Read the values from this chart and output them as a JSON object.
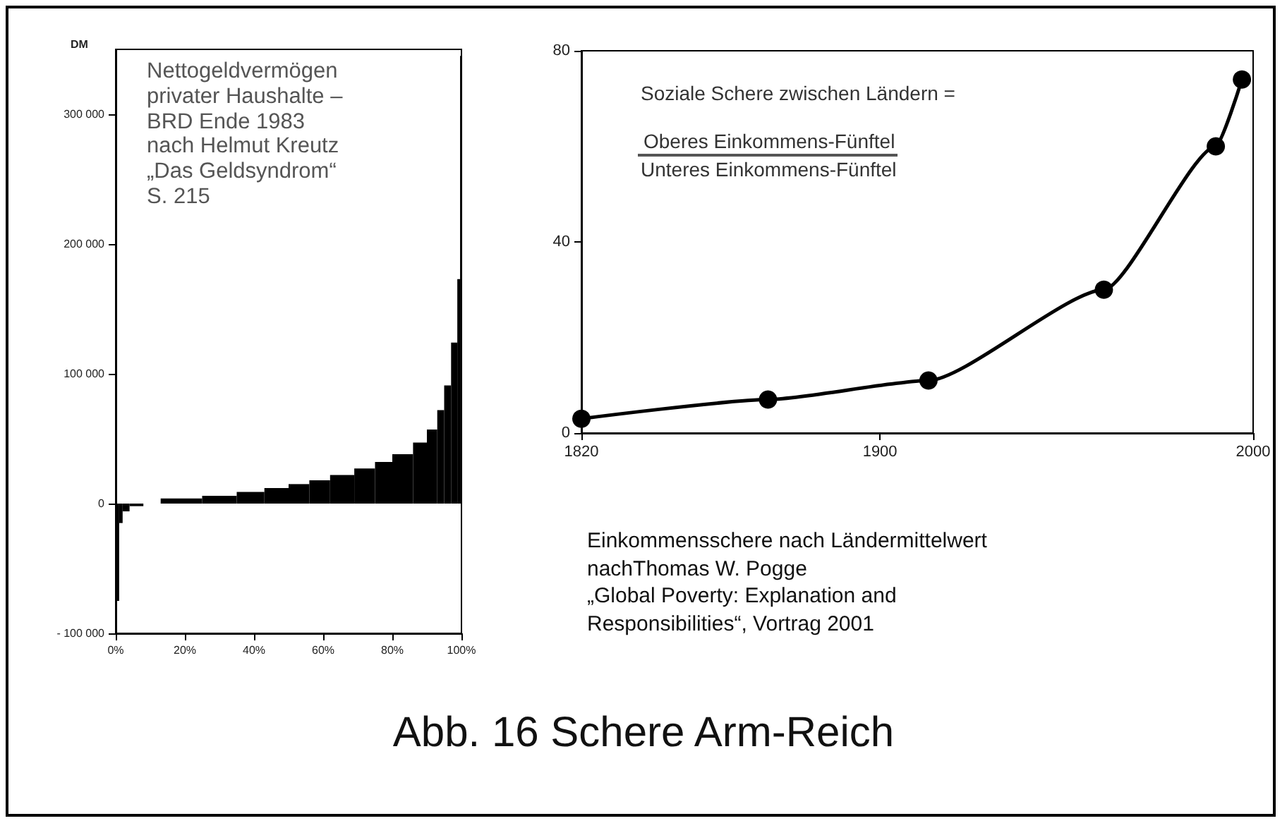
{
  "chart_data": [
    {
      "type": "histogram",
      "title": "Abb. 16  Schere Arm-Reich",
      "ylabel": "DM",
      "annotations": [
        "Nettogeldvermögen\nprivater Haushalte –\nBRD Ende 1983\nnach Helmut Kreutz\n„Das Geldsyndrom“\nS. 215"
      ],
      "bins": [
        0,
        1,
        2,
        4,
        8,
        13,
        25,
        35,
        43,
        50,
        56,
        62,
        69,
        75,
        80,
        86,
        90,
        93,
        95,
        97,
        98.8,
        99.6,
        100
      ],
      "values": [
        -75000,
        -15000,
        -6000,
        -2000,
        0,
        4000,
        6000,
        9000,
        12000,
        15000,
        18000,
        22000,
        27000,
        32000,
        38000,
        47000,
        57000,
        72000,
        91000,
        124000,
        173000,
        345000
      ],
      "color": "#000000",
      "xlim": [
        0,
        100
      ],
      "xticks": [
        {
          "value": 0,
          "label": "0%"
        },
        {
          "value": 20,
          "label": "20%"
        },
        {
          "value": 40,
          "label": "40%"
        },
        {
          "value": 60,
          "label": "60%"
        },
        {
          "value": 80,
          "label": "80%"
        },
        {
          "value": 100,
          "label": "100%"
        }
      ],
      "ylim": [
        -100000,
        350000
      ],
      "yticks": [
        {
          "value": -100000,
          "label": "- 100 000"
        },
        0,
        {
          "value": 100000,
          "label": "100 000"
        },
        {
          "value": 200000,
          "label": "200 000"
        },
        {
          "value": 300000,
          "label": "300 000"
        }
      ],
      "grid": false
    },
    {
      "type": "line",
      "annotations": [
        "Soziale Schere zwischen Ländern =",
        "Oberes Einkommens-Fünftel",
        "Unteres Einkommens-Fünftel",
        "Einkommensschere nach Ländermittelwert\nnachThomas W. Pogge\n„Global Poverty: Explanation and\nResponsibilities“, Vortrag 2001"
      ],
      "x": [
        1820,
        1870,
        1913,
        1960,
        1990,
        1997
      ],
      "values": [
        3,
        7,
        11,
        30,
        60,
        74
      ],
      "color": "#000000",
      "marker": "circle",
      "line_style": "solid",
      "xlim": [
        1820,
        2000
      ],
      "xticks": [
        1820,
        1900,
        2000
      ],
      "ylim": [
        0,
        80
      ],
      "yticks": [
        0,
        40,
        80
      ],
      "grid": false
    }
  ]
}
